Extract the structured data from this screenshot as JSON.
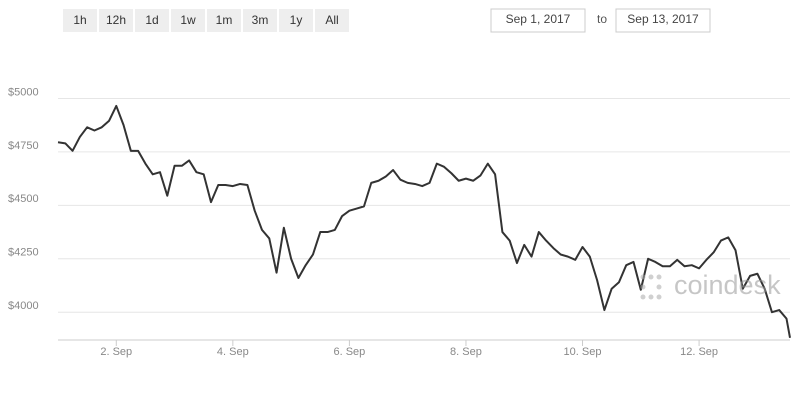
{
  "range_buttons": [
    "1h",
    "12h",
    "1d",
    "1w",
    "1m",
    "3m",
    "1y",
    "All"
  ],
  "date_from": "Sep 1, 2017",
  "date_separator": "to",
  "date_to": "Sep 13, 2017",
  "watermark": "coindesk",
  "chart_data": {
    "type": "line",
    "color": "#333333",
    "grid": true,
    "x": [
      1,
      1.125,
      1.25,
      1.375,
      1.5,
      1.625,
      1.75,
      1.875,
      2,
      2.125,
      2.25,
      2.375,
      2.5,
      2.625,
      2.75,
      2.875,
      3,
      3.125,
      3.25,
      3.375,
      3.5,
      3.625,
      3.75,
      3.875,
      4,
      4.125,
      4.25,
      4.375,
      4.5,
      4.625,
      4.75,
      4.875,
      5,
      5.125,
      5.25,
      5.375,
      5.5,
      5.625,
      5.75,
      5.875,
      6,
      6.125,
      6.25,
      6.375,
      6.5,
      6.625,
      6.75,
      6.875,
      7,
      7.125,
      7.25,
      7.375,
      7.5,
      7.625,
      7.75,
      7.875,
      8,
      8.125,
      8.25,
      8.375,
      8.5,
      8.625,
      8.75,
      8.875,
      9,
      9.125,
      9.25,
      9.375,
      9.5,
      9.625,
      9.75,
      9.875,
      10,
      10.125,
      10.25,
      10.375,
      10.5,
      10.625,
      10.75,
      10.875,
      11,
      11.125,
      11.25,
      11.375,
      11.5,
      11.625,
      11.75,
      11.875,
      12,
      12.125,
      12.25,
      12.375,
      12.5,
      12.625,
      12.75,
      12.875,
      13,
      13.125,
      13.25,
      13.375,
      13.5,
      13.56
    ],
    "values": [
      4795,
      4790,
      4755,
      4820,
      4865,
      4850,
      4865,
      4895,
      4965,
      4875,
      4755,
      4755,
      4695,
      4645,
      4655,
      4545,
      4685,
      4685,
      4710,
      4655,
      4645,
      4515,
      4595,
      4595,
      4590,
      4600,
      4595,
      4475,
      4385,
      4345,
      4185,
      4395,
      4250,
      4160,
      4220,
      4270,
      4375,
      4375,
      4385,
      4450,
      4475,
      4485,
      4495,
      4605,
      4615,
      4635,
      4665,
      4620,
      4605,
      4600,
      4590,
      4605,
      4695,
      4680,
      4650,
      4615,
      4625,
      4615,
      4640,
      4695,
      4645,
      4375,
      4335,
      4230,
      4315,
      4260,
      4375,
      4335,
      4300,
      4270,
      4260,
      4245,
      4305,
      4260,
      4150,
      4010,
      4110,
      4140,
      4220,
      4235,
      4105,
      4250,
      4235,
      4215,
      4215,
      4245,
      4215,
      4220,
      4205,
      4245,
      4280,
      4335,
      4350,
      4290,
      4110,
      4170,
      4180,
      4110,
      4000,
      4010,
      3970,
      3880
    ],
    "xlim": [
      1,
      13.56
    ],
    "xticks": [
      {
        "value": 2,
        "label": "2. Sep"
      },
      {
        "value": 4,
        "label": "4. Sep"
      },
      {
        "value": 6,
        "label": "6. Sep"
      },
      {
        "value": 8,
        "label": "8. Sep"
      },
      {
        "value": 10,
        "label": "10. Sep"
      },
      {
        "value": 12,
        "label": "12. Sep"
      }
    ],
    "ylim": [
      3870,
      5250
    ],
    "yticks": [
      {
        "value": 4000,
        "label": "$4000"
      },
      {
        "value": 4250,
        "label": "$4250"
      },
      {
        "value": 4500,
        "label": "$4500"
      },
      {
        "value": 4750,
        "label": "$4750"
      },
      {
        "value": 5000,
        "label": "$5000"
      }
    ]
  }
}
